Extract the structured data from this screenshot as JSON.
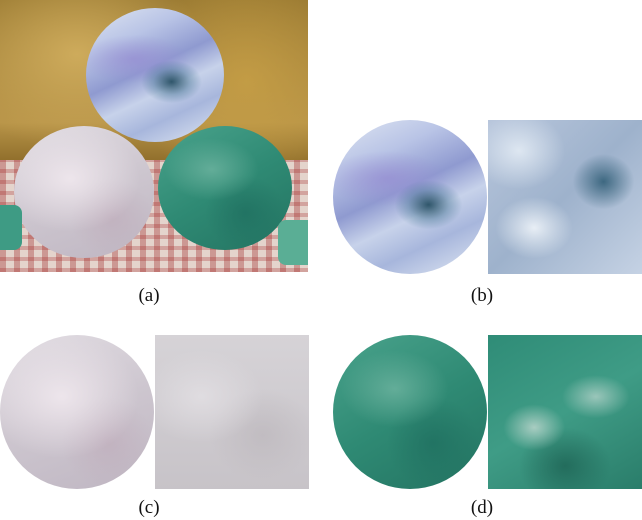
{
  "panels": [
    {
      "id": "a",
      "label": "(a)"
    },
    {
      "id": "b",
      "label": "(b)"
    },
    {
      "id": "c",
      "label": "(c)"
    },
    {
      "id": "d",
      "label": "(d)"
    }
  ],
  "colors": {
    "blue_jade": "#a7b6dc",
    "white_jade": "#cdc6cf",
    "green_jade": "#2f8a74",
    "background_gold": "#b89448",
    "cloth": "#e4d4cc"
  }
}
